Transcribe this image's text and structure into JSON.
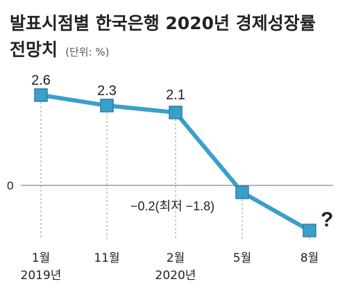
{
  "chart_data": {
    "type": "line",
    "title": "발표시점별 한국은행 2020년 경제성장률",
    "title_line2": "전망치",
    "unit_label": "(단위: %)",
    "categories": [
      {
        "line1": "1월",
        "line2": "2019년"
      },
      {
        "line1": "11월",
        "line2": ""
      },
      {
        "line1": "2월",
        "line2": "2020년"
      },
      {
        "line1": "5월",
        "line2": ""
      },
      {
        "line1": "8월",
        "line2": ""
      }
    ],
    "values": [
      2.6,
      2.3,
      2.1,
      -0.2,
      -1.3
    ],
    "point_labels": [
      "2.6",
      "2.3",
      "2.1",
      "−0.2(최저 −1.8)",
      "?"
    ],
    "y_ticks": [
      {
        "value": 0,
        "label": "0"
      }
    ],
    "ylim": [
      -2.0,
      3.0
    ],
    "grid": false,
    "colors": {
      "line": "#3a9fc9",
      "marker": "#3a9fc9",
      "marker_stroke": "#2a7fa6",
      "baseline": "#888888",
      "guide": "#999999"
    }
  }
}
